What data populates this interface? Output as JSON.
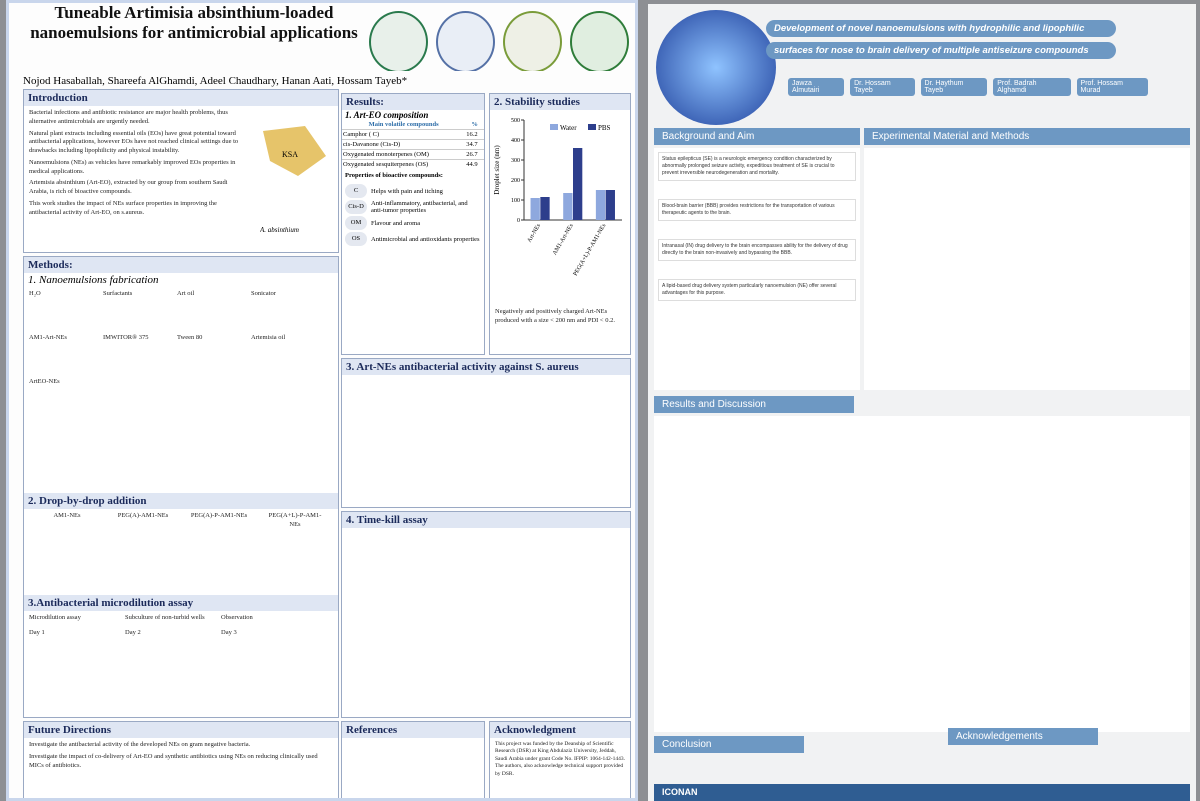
{
  "left_poster": {
    "title": "Tuneable Artimisia absinthium-loaded nanoemulsions for antimicrobial applications",
    "authors": "Nojod Hasaballah, Shareefa AlGhamdi, Adeel Chaudhary, Hanan Aati, Hossam Tayeb*",
    "introduction": {
      "heading": "Introduction",
      "bullets": [
        "Bacterial infections and antibiotic resistance are major health problems, thus alternative antimicrobials are urgently needed.",
        "Natural plant extracts including essential oils (EOs) have great potential toward antibacterial applications, however EOs have not reached clinical settings due to drawbacks including lipophilicity and physical instability.",
        "Nanoemulsions (NEs) as vehicles have remarkably improved EOs properties in medical applications.",
        "Artemisia absinthium (Art-EO), extracted by our group from southern Saudi Arabia, is rich of bioactive compounds.",
        "This work studies the impact of NEs surface properties in improving the antibacterial activity of Art-EO, on s.aureus."
      ],
      "map_label": "KSA",
      "plant_label": "A. absinthium"
    },
    "methods": {
      "heading": "Methods:",
      "step1": "1. Nanoemulsions fabrication",
      "step1_labels": [
        "H₂O",
        "Surfactants",
        "Art oil",
        "Sonicator",
        "AM1-Art-NEs",
        "IMWITOR® 375",
        "Tween 80",
        "Artemisia oil",
        "ArtEO-NEs"
      ],
      "step2": "2. Drop-by-drop addition",
      "step2_labels": [
        "AM1-NEs",
        "PEG(A)-AM1-NEs",
        "PEG(A)-P-AM1-NEs",
        "PEG(A+L)-P-AM1-NEs"
      ],
      "step3": "3.Antibacterial microdilution assay",
      "step3_labels": [
        "Microdilution assay",
        "Subculture of non-turbid wells",
        "Observation",
        "Day 1",
        "Day 2",
        "Day 3"
      ]
    },
    "results": {
      "heading": "Results:",
      "sub1": "1. Art-EO composition",
      "table_head": [
        "Main volatile compounds",
        "%"
      ],
      "table_rows": [
        [
          "Camphor ( C)",
          "16.2"
        ],
        [
          "cis-Davanone (Cis-D)",
          "34.7"
        ],
        [
          "Oxygenated monoterpenes (OM)",
          "26.7"
        ],
        [
          "Oxygenated sesquiterpenes (OS)",
          "44.9"
        ]
      ],
      "props_head": "Properties of bioactive compounds:",
      "props": [
        [
          "C",
          "Helps with pain and itching"
        ],
        [
          "Cis-D",
          "Anti-inflammatory, antibacterial, and anti-tumor properties"
        ],
        [
          "OM",
          "Flavour and aroma"
        ],
        [
          "OS",
          "Antimicrobial and antioxidants properties"
        ]
      ],
      "stability_heading": "2. Stability studies",
      "stability_note": "Negatively and positively charged Art-NEs produced with a size < 200 nm and PDI < 0.2.",
      "activity_heading": "3. Art-NEs antibacterial activity against S. aureus",
      "timekill_heading": "4. Time-kill assay"
    },
    "future": {
      "heading": "Future Directions",
      "bullets": [
        "Investigate the antibacterial activity of the developed NEs on gram negative bacteria.",
        "Investigate the impact of co-delivery of Art-EO and synthetic antibiotics using NEs on reducing clinically used MICs of antibiotics."
      ]
    },
    "references_heading": "References",
    "ack": {
      "heading": "Acknowledgment",
      "text": "This project was funded by the Deanship of Scientific Research (DSR) at King Abdulaziz University, Jeddah, Saudi Arabia under grant Code No. IFPIP: 1064-142-1443. The authors, also acknowledge technical support provided by DSR."
    }
  },
  "right_poster": {
    "title_line1": "Development of novel nanoemulsions with hydrophilic and lipophilic",
    "title_line2": "surfaces for nose to brain delivery of multiple antiseizure compounds",
    "authors": [
      "Jawza Almutairi",
      "Dr. Hossam Tayeb",
      "Dr. Haythum Tayeb",
      "Prof. Badrah Alghamdi",
      "Prof. Hossam Murad"
    ],
    "background_heading": "Background and Aim",
    "background": [
      "Status epilepticus (SE) is a neurologic emergency condition characterized by abnormally prolonged seizure activity, expeditious treatment of SE is crucial to prevent irreversible neurodegeneration and mortality.",
      "Blood-brain barrier (BBB) provides restrictions for the transportation of various therapeutic agents to the brain.",
      "Intranasal (IN) drug delivery to the brain encompasses ability for the delivery of drug directly to the brain non-invasively and bypassing the BBB.",
      "A lipid-based drug delivery system particularly nanoemulsion (NE) offer several advantages for this purpose."
    ],
    "methods_heading": "Experimental Material and Methods",
    "results_heading": "Results and Discussion",
    "conclusion_heading": "Conclusion",
    "ack_heading": "Acknowledgements",
    "brand": "ICONAN"
  },
  "chart_data": {
    "type": "bar",
    "y_label": "Droplet size (nm)",
    "categories": [
      "Art-NEs",
      "AM1-Art-NEs",
      "PEG(A+L)-P-AM1-NEs"
    ],
    "series": [
      {
        "name": "Water",
        "color": "#8ea8de",
        "values": [
          110,
          135,
          150
        ]
      },
      {
        "name": "PBS",
        "color": "#2d3e8c",
        "values": [
          115,
          360,
          150
        ]
      }
    ],
    "ylim": [
      0,
      500
    ],
    "yticks": [
      0,
      100,
      200,
      300,
      400,
      500
    ]
  }
}
